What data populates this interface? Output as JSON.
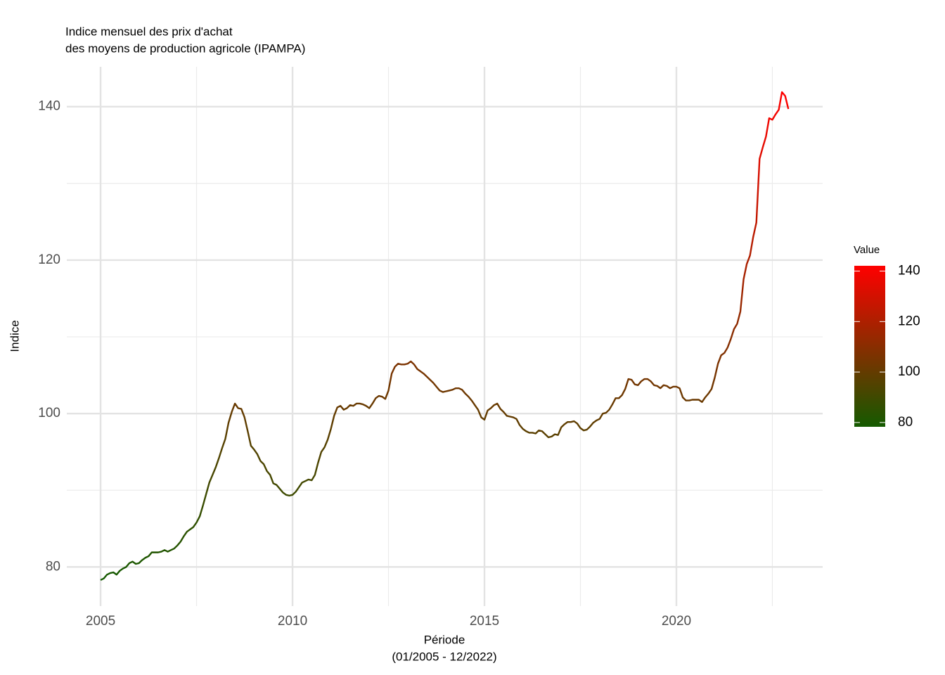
{
  "chart_data": {
    "type": "line",
    "title": [
      "Indice mensuel des prix d'achat",
      "des moyens de production agricole (IPAMPA)"
    ],
    "x_label": [
      "Période",
      "(01/2005 - 12/2022)"
    ],
    "y_label": "Indice",
    "x": [
      "2005-01",
      "2005-02",
      "2005-03",
      "2005-04",
      "2005-05",
      "2005-06",
      "2005-07",
      "2005-08",
      "2005-09",
      "2005-10",
      "2005-11",
      "2005-12",
      "2006-01",
      "2006-02",
      "2006-03",
      "2006-04",
      "2006-05",
      "2006-06",
      "2006-07",
      "2006-08",
      "2006-09",
      "2006-10",
      "2006-11",
      "2006-12",
      "2007-01",
      "2007-02",
      "2007-03",
      "2007-04",
      "2007-05",
      "2007-06",
      "2007-07",
      "2007-08",
      "2007-09",
      "2007-10",
      "2007-11",
      "2007-12",
      "2008-01",
      "2008-02",
      "2008-03",
      "2008-04",
      "2008-05",
      "2008-06",
      "2008-07",
      "2008-08",
      "2008-09",
      "2008-10",
      "2008-11",
      "2008-12",
      "2009-01",
      "2009-02",
      "2009-03",
      "2009-04",
      "2009-05",
      "2009-06",
      "2009-07",
      "2009-08",
      "2009-09",
      "2009-10",
      "2009-11",
      "2009-12",
      "2010-01",
      "2010-02",
      "2010-03",
      "2010-04",
      "2010-05",
      "2010-06",
      "2010-07",
      "2010-08",
      "2010-09",
      "2010-10",
      "2010-11",
      "2010-12",
      "2011-01",
      "2011-02",
      "2011-03",
      "2011-04",
      "2011-05",
      "2011-06",
      "2011-07",
      "2011-08",
      "2011-09",
      "2011-10",
      "2011-11",
      "2011-12",
      "2012-01",
      "2012-02",
      "2012-03",
      "2012-04",
      "2012-05",
      "2012-06",
      "2012-07",
      "2012-08",
      "2012-09",
      "2012-10",
      "2012-11",
      "2012-12",
      "2013-01",
      "2013-02",
      "2013-03",
      "2013-04",
      "2013-05",
      "2013-06",
      "2013-07",
      "2013-08",
      "2013-09",
      "2013-10",
      "2013-11",
      "2013-12",
      "2014-01",
      "2014-02",
      "2014-03",
      "2014-04",
      "2014-05",
      "2014-06",
      "2014-07",
      "2014-08",
      "2014-09",
      "2014-10",
      "2014-11",
      "2014-12",
      "2015-01",
      "2015-02",
      "2015-03",
      "2015-04",
      "2015-05",
      "2015-06",
      "2015-07",
      "2015-08",
      "2015-09",
      "2015-10",
      "2015-11",
      "2015-12",
      "2016-01",
      "2016-02",
      "2016-03",
      "2016-04",
      "2016-05",
      "2016-06",
      "2016-07",
      "2016-08",
      "2016-09",
      "2016-10",
      "2016-11",
      "2016-12",
      "2017-01",
      "2017-02",
      "2017-03",
      "2017-04",
      "2017-05",
      "2017-06",
      "2017-07",
      "2017-08",
      "2017-09",
      "2017-10",
      "2017-11",
      "2017-12",
      "2018-01",
      "2018-02",
      "2018-03",
      "2018-04",
      "2018-05",
      "2018-06",
      "2018-07",
      "2018-08",
      "2018-09",
      "2018-10",
      "2018-11",
      "2018-12",
      "2019-01",
      "2019-02",
      "2019-03",
      "2019-04",
      "2019-05",
      "2019-06",
      "2019-07",
      "2019-08",
      "2019-09",
      "2019-10",
      "2019-11",
      "2019-12",
      "2020-01",
      "2020-02",
      "2020-03",
      "2020-04",
      "2020-05",
      "2020-06",
      "2020-07",
      "2020-08",
      "2020-09",
      "2020-10",
      "2020-11",
      "2020-12",
      "2021-01",
      "2021-02",
      "2021-03",
      "2021-04",
      "2021-05",
      "2021-06",
      "2021-07",
      "2021-08",
      "2021-09",
      "2021-10",
      "2021-11",
      "2021-12",
      "2022-01",
      "2022-02",
      "2022-03",
      "2022-04",
      "2022-05",
      "2022-06",
      "2022-07",
      "2022-08",
      "2022-09",
      "2022-10",
      "2022-11",
      "2022-12"
    ],
    "values": [
      78.3,
      78.5,
      79.0,
      79.2,
      79.3,
      79.0,
      79.5,
      79.8,
      80.0,
      80.5,
      80.7,
      80.4,
      80.5,
      80.9,
      81.2,
      81.4,
      81.9,
      81.9,
      81.9,
      82.0,
      82.2,
      82.0,
      82.2,
      82.4,
      82.8,
      83.3,
      84.0,
      84.6,
      84.9,
      85.2,
      85.8,
      86.6,
      88.0,
      89.5,
      91.0,
      92.0,
      93.0,
      94.2,
      95.5,
      96.7,
      98.8,
      100.2,
      101.3,
      100.7,
      100.6,
      99.5,
      97.7,
      95.8,
      95.3,
      94.7,
      93.8,
      93.4,
      92.5,
      92.0,
      90.9,
      90.7,
      90.2,
      89.7,
      89.4,
      89.3,
      89.4,
      89.8,
      90.4,
      91.0,
      91.2,
      91.4,
      91.3,
      92.0,
      93.6,
      95.0,
      95.6,
      96.6,
      98.0,
      99.7,
      100.8,
      101.0,
      100.5,
      100.7,
      101.1,
      101.0,
      101.3,
      101.3,
      101.2,
      101.0,
      100.7,
      101.3,
      102.0,
      102.3,
      102.2,
      101.9,
      103.0,
      105.2,
      106.1,
      106.5,
      106.4,
      106.4,
      106.5,
      106.8,
      106.4,
      105.8,
      105.5,
      105.2,
      104.8,
      104.4,
      104.0,
      103.5,
      103.0,
      102.8,
      102.9,
      103.0,
      103.1,
      103.3,
      103.3,
      103.1,
      102.6,
      102.2,
      101.7,
      101.1,
      100.5,
      99.5,
      99.2,
      100.4,
      100.7,
      101.1,
      101.3,
      100.6,
      100.2,
      99.7,
      99.6,
      99.5,
      99.3,
      98.5,
      98.0,
      97.7,
      97.5,
      97.5,
      97.4,
      97.8,
      97.7,
      97.3,
      96.9,
      97.0,
      97.3,
      97.2,
      98.2,
      98.6,
      98.9,
      98.9,
      99.0,
      98.7,
      98.1,
      97.8,
      97.9,
      98.3,
      98.8,
      99.1,
      99.3,
      100.0,
      100.1,
      100.5,
      101.2,
      102.0,
      102.0,
      102.4,
      103.2,
      104.5,
      104.4,
      103.8,
      103.7,
      104.2,
      104.5,
      104.5,
      104.2,
      103.7,
      103.6,
      103.3,
      103.7,
      103.6,
      103.3,
      103.5,
      103.5,
      103.3,
      102.1,
      101.7,
      101.7,
      101.8,
      101.8,
      101.8,
      101.5,
      102.1,
      102.6,
      103.2,
      104.7,
      106.5,
      107.6,
      107.9,
      108.6,
      109.7,
      111.0,
      111.7,
      113.3,
      117.5,
      119.5,
      120.6,
      123.0,
      124.9,
      133.2,
      134.7,
      136.1,
      138.5,
      138.3,
      139.0,
      139.6,
      141.9,
      141.4,
      139.7
    ],
    "xlim": [
      2004.12,
      2023.81
    ],
    "xticks": [
      2005,
      2010,
      2015,
      2020
    ],
    "xminor": [
      2007.5,
      2012.5,
      2017.5,
      2022.5
    ],
    "ylim": [
      74.9,
      145.2
    ],
    "yticks": [
      80,
      100,
      120,
      140
    ],
    "yminor": [
      90,
      110,
      130
    ],
    "grid": true,
    "legend_title": "Value",
    "color_scale": {
      "colors": [
        "#145a00",
        "#ff0000"
      ],
      "lim": [
        78.3,
        142.1
      ],
      "ticks": [
        80,
        100,
        120,
        140
      ]
    }
  }
}
